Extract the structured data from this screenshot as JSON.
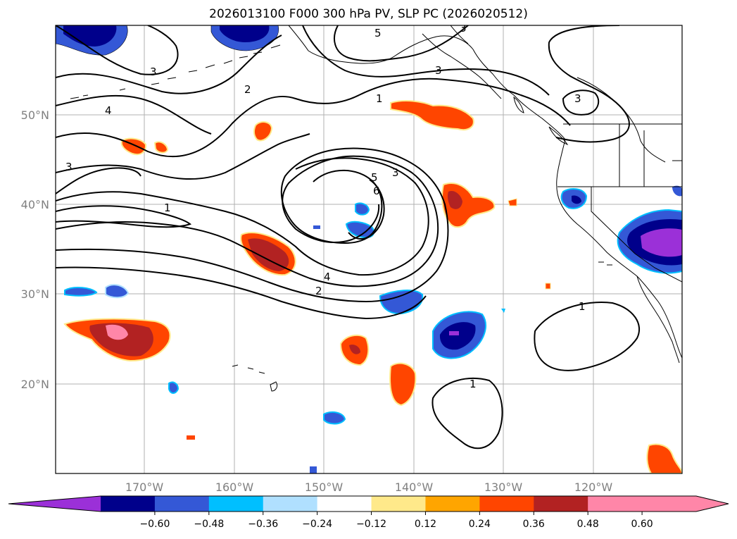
{
  "title": "2026013100 F000 300 hPa PV, SLP PC (2026020512)",
  "lat_labels": [
    "50°N",
    "40°N",
    "30°N",
    "20°N"
  ],
  "lon_labels": [
    "170°W",
    "160°W",
    "150°W",
    "140°W",
    "130°W",
    "120°W"
  ],
  "contour_labels": [
    "3",
    "5",
    "3",
    "2",
    "4",
    "3",
    "1",
    "3",
    "3",
    "5",
    "6",
    "3",
    "1",
    "4",
    "2",
    "1",
    "1"
  ],
  "colorbar": {
    "ticks": [
      "−0.60",
      "−0.48",
      "−0.36",
      "−0.24",
      "−0.12",
      "0.12",
      "0.24",
      "0.36",
      "0.48",
      "0.60"
    ],
    "colors": [
      "#9b30d8",
      "#00008b",
      "#3458d6",
      "#00bfff",
      "#b0e0ff",
      "#ffffff",
      "#ffe98a",
      "#ffa500",
      "#ff4500",
      "#b22222",
      "#ff86a8",
      "#ff86a8"
    ]
  }
}
